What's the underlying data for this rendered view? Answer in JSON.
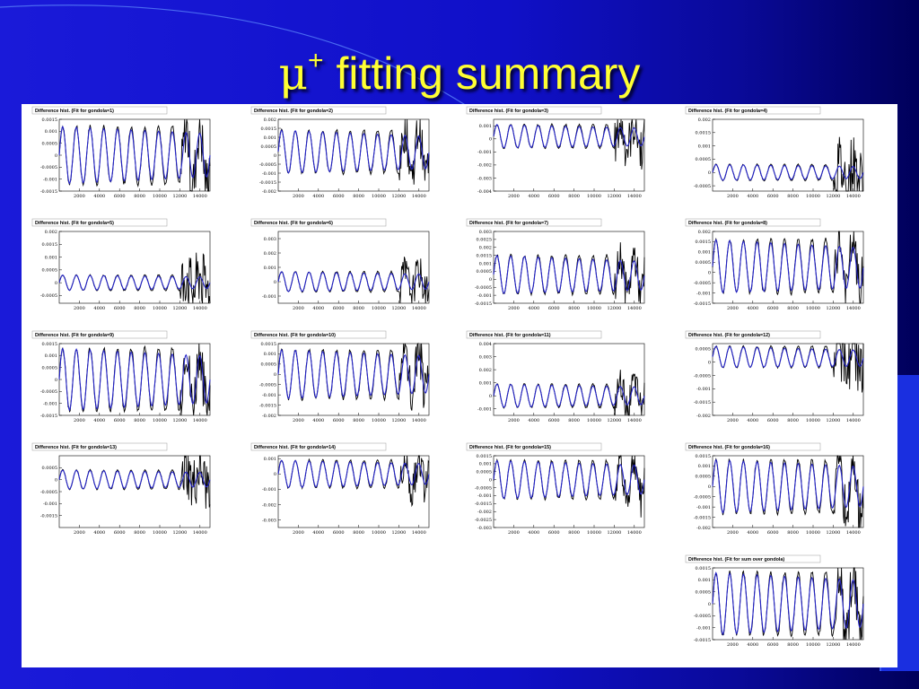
{
  "slide": {
    "title_symbol": "μ",
    "title_superscript": "+",
    "title_rest": " fitting summary"
  },
  "colors": {
    "title": "#ffff33",
    "data_line": "#000000",
    "fit_line": "#2323c8",
    "background": "#1414d0"
  },
  "chart_data": [
    {
      "type": "line",
      "title": "Difference hist. (Fit for gondola=1)",
      "yticks": [
        "0.0015",
        "0.001",
        "0.0005",
        "0",
        "-0.0005",
        "-0.001",
        "-0.0015"
      ],
      "xticks": [
        "2000",
        "4000",
        "6000",
        "8000",
        "10000",
        "12000",
        "14000"
      ],
      "ylim": [
        -0.0015,
        0.0015
      ],
      "xlim": [
        0,
        15000
      ],
      "oscillations": 11,
      "amplitude": 0.0012,
      "offset": 0.0,
      "noise_start": 12000,
      "noise": 0.0012
    },
    {
      "type": "line",
      "title": "Difference hist. (Fit for gondola=2)",
      "yticks": [
        "0.002",
        "0.0015",
        "0.001",
        "0.0005",
        "0",
        "-0.0005",
        "-0.001",
        "-0.0015",
        "-0.002"
      ],
      "xticks": [
        "2000",
        "4000",
        "6000",
        "8000",
        "10000",
        "12000",
        "14000"
      ],
      "ylim": [
        -0.002,
        0.002
      ],
      "xlim": [
        0,
        15000
      ],
      "oscillations": 11,
      "amplitude": 0.0012,
      "offset": 0.0002,
      "noise_start": 12000,
      "noise": 0.0012
    },
    {
      "type": "line",
      "title": "Difference hist. (Fit for gondola=3)",
      "yticks": [
        "0.001",
        "0",
        "-0.001",
        "-0.002",
        "-0.003",
        "-0.004"
      ],
      "xticks": [
        "2000",
        "4000",
        "6000",
        "8000",
        "10000",
        "12000",
        "14000"
      ],
      "ylim": [
        -0.004,
        0.0015
      ],
      "xlim": [
        0,
        15000
      ],
      "oscillations": 11,
      "amplitude": 0.0009,
      "offset": 0.0002,
      "noise_start": 12000,
      "noise": 0.0018
    },
    {
      "type": "line",
      "title": "Difference hist. (Fit for gondola=4)",
      "yticks": [
        "0.002",
        "0.0015",
        "0.001",
        "0.0005",
        "0",
        "-0.0005"
      ],
      "xticks": [
        "2000",
        "4000",
        "6000",
        "8000",
        "10000",
        "12000",
        "14000"
      ],
      "ylim": [
        -0.0007,
        0.002
      ],
      "xlim": [
        0,
        15000
      ],
      "oscillations": 11,
      "amplitude": 0.0003,
      "offset": 0.0,
      "noise_start": 12000,
      "noise": 0.0012
    },
    {
      "type": "line",
      "title": "Difference hist. (Fit for gondola=5)",
      "yticks": [
        "0.002",
        "0.0015",
        "0.001",
        "0.0005",
        "0",
        "-0.0005"
      ],
      "xticks": [
        "2000",
        "4000",
        "6000",
        "8000",
        "10000",
        "12000",
        "14000"
      ],
      "ylim": [
        -0.0008,
        0.002
      ],
      "xlim": [
        0,
        15000
      ],
      "oscillations": 11,
      "amplitude": 0.0003,
      "offset": 0.0,
      "noise_start": 12000,
      "noise": 0.0012
    },
    {
      "type": "line",
      "title": "Difference hist. (Fit for gondola=6)",
      "yticks": [
        "0.003",
        "0.002",
        "0.001",
        "0",
        "-0.001"
      ],
      "xticks": [
        "2000",
        "4000",
        "6000",
        "8000",
        "10000",
        "12000",
        "14000"
      ],
      "ylim": [
        -0.0015,
        0.0035
      ],
      "xlim": [
        0,
        15000
      ],
      "oscillations": 11,
      "amplitude": 0.0007,
      "offset": 0.0,
      "noise_start": 12000,
      "noise": 0.0012
    },
    {
      "type": "line",
      "title": "Difference hist. (Fit for gondola=7)",
      "yticks": [
        "0.003",
        "0.0025",
        "0.002",
        "0.0015",
        "0.001",
        "0.0005",
        "0",
        "-0.0005",
        "-0.001",
        "-0.0015"
      ],
      "xticks": [
        "2000",
        "4000",
        "6000",
        "8000",
        "10000",
        "12000",
        "14000"
      ],
      "ylim": [
        -0.0015,
        0.003
      ],
      "xlim": [
        0,
        15000
      ],
      "oscillations": 11,
      "amplitude": 0.0012,
      "offset": 0.0003,
      "noise_start": 12000,
      "noise": 0.0012
    },
    {
      "type": "line",
      "title": "Difference hist. (Fit for gondola=8)",
      "yticks": [
        "0.002",
        "0.0015",
        "0.001",
        "0.0005",
        "0",
        "-0.0005",
        "-0.001",
        "-0.0015"
      ],
      "xticks": [
        "2000",
        "4000",
        "6000",
        "8000",
        "10000",
        "12000",
        "14000"
      ],
      "ylim": [
        -0.0015,
        0.002
      ],
      "xlim": [
        0,
        15000
      ],
      "oscillations": 11,
      "amplitude": 0.0013,
      "offset": 0.0003,
      "noise_start": 12000,
      "noise": 0.0012
    },
    {
      "type": "line",
      "title": "Difference hist. (Fit for gondola=9)",
      "yticks": [
        "0.0015",
        "0.001",
        "0.0005",
        "0",
        "-0.0005",
        "-0.001",
        "-0.0015"
      ],
      "xticks": [
        "2000",
        "4000",
        "6000",
        "8000",
        "10000",
        "12000",
        "14000"
      ],
      "ylim": [
        -0.0015,
        0.0015
      ],
      "xlim": [
        0,
        15000
      ],
      "oscillations": 11,
      "amplitude": 0.0013,
      "offset": 0.0,
      "noise_start": 12000,
      "noise": 0.0012
    },
    {
      "type": "line",
      "title": "Difference hist. (Fit for gondola=10)",
      "yticks": [
        "0.0015",
        "0.001",
        "0.0005",
        "0",
        "-0.0005",
        "-0.001",
        "-0.0015",
        "-0.002"
      ],
      "xticks": [
        "2000",
        "4000",
        "6000",
        "8000",
        "10000",
        "12000",
        "14000"
      ],
      "ylim": [
        -0.002,
        0.0015
      ],
      "xlim": [
        0,
        15000
      ],
      "oscillations": 11,
      "amplitude": 0.0012,
      "offset": 0.0,
      "noise_start": 12000,
      "noise": 0.0012
    },
    {
      "type": "line",
      "title": "Difference hist. (Fit for gondola=11)",
      "yticks": [
        "0.004",
        "0.003",
        "0.002",
        "0.001",
        "0",
        "-0.001"
      ],
      "xticks": [
        "2000",
        "4000",
        "6000",
        "8000",
        "10000",
        "12000",
        "14000"
      ],
      "ylim": [
        -0.0015,
        0.004
      ],
      "xlim": [
        0,
        15000
      ],
      "oscillations": 11,
      "amplitude": 0.0009,
      "offset": 0.0,
      "noise_start": 12000,
      "noise": 0.0012
    },
    {
      "type": "line",
      "title": "Difference hist. (Fit for gondola=12)",
      "yticks": [
        "0.0005",
        "0",
        "-0.0005",
        "-0.001",
        "-0.0015",
        "-0.002"
      ],
      "xticks": [
        "2000",
        "4000",
        "6000",
        "8000",
        "10000",
        "12000",
        "14000"
      ],
      "ylim": [
        -0.002,
        0.0007
      ],
      "xlim": [
        0,
        15000
      ],
      "oscillations": 11,
      "amplitude": 0.0004,
      "offset": 0.0002,
      "noise_start": 12000,
      "noise": 0.0012
    },
    {
      "type": "line",
      "title": "Difference hist. (Fit for gondola=13)",
      "yticks": [
        "0.0005",
        "0",
        "-0.0005",
        "-0.001",
        "-0.0015"
      ],
      "xticks": [
        "2000",
        "4000",
        "6000",
        "8000",
        "10000",
        "12000",
        "14000"
      ],
      "ylim": [
        -0.002,
        0.001
      ],
      "xlim": [
        0,
        15000
      ],
      "oscillations": 11,
      "amplitude": 0.0004,
      "offset": 0.0,
      "noise_start": 12000,
      "noise": 0.0012
    },
    {
      "type": "line",
      "title": "Difference hist. (Fit for gondola=14)",
      "yticks": [
        "0.001",
        "0",
        "-0.001",
        "-0.002",
        "-0.003"
      ],
      "xticks": [
        "2000",
        "4000",
        "6000",
        "8000",
        "10000",
        "12000",
        "14000"
      ],
      "ylim": [
        -0.0035,
        0.0012
      ],
      "xlim": [
        0,
        15000
      ],
      "oscillations": 11,
      "amplitude": 0.0009,
      "offset": 0.0,
      "noise_start": 12000,
      "noise": 0.0012
    },
    {
      "type": "line",
      "title": "Difference hist. (Fit for gondola=15)",
      "yticks": [
        "0.0015",
        "0.001",
        "0.0005",
        "0",
        "-0.0005",
        "-0.001",
        "-0.0015",
        "-0.002",
        "-0.0025",
        "-0.003"
      ],
      "xticks": [
        "2000",
        "4000",
        "6000",
        "8000",
        "10000",
        "12000",
        "14000"
      ],
      "ylim": [
        -0.003,
        0.0015
      ],
      "xlim": [
        0,
        15000
      ],
      "oscillations": 11,
      "amplitude": 0.0012,
      "offset": 0.0,
      "noise_start": 12000,
      "noise": 0.0012
    },
    {
      "type": "line",
      "title": "Difference hist. (Fit for gondola=16)",
      "yticks": [
        "0.0015",
        "0.001",
        "0.0005",
        "0",
        "-0.0005",
        "-0.001",
        "-0.0015",
        "-0.002"
      ],
      "xticks": [
        "2000",
        "4000",
        "6000",
        "8000",
        "10000",
        "12000",
        "14000"
      ],
      "ylim": [
        -0.002,
        0.0015
      ],
      "xlim": [
        0,
        15000
      ],
      "oscillations": 11,
      "amplitude": 0.0013,
      "offset": 0.0,
      "noise_start": 12000,
      "noise": 0.0012
    },
    {
      "type": "line",
      "title": "Difference hist. (Fit for sum over gondola)",
      "yticks": [
        "0.0015",
        "0.001",
        "0.0005",
        "0",
        "-0.0005",
        "-0.001",
        "-0.0015"
      ],
      "xticks": [
        "2000",
        "4000",
        "6000",
        "8000",
        "10000",
        "12000",
        "14000"
      ],
      "ylim": [
        -0.0015,
        0.0015
      ],
      "xlim": [
        0,
        15000
      ],
      "oscillations": 11,
      "amplitude": 0.0013,
      "offset": 0.0,
      "noise_start": 12000,
      "noise": 0.0012
    }
  ]
}
